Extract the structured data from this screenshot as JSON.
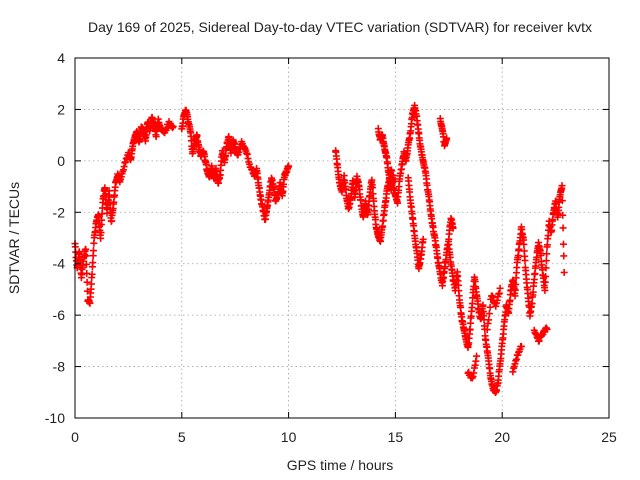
{
  "chart_data": {
    "type": "scatter",
    "title": "Day 169 of 2025, Sidereal Day-to-day VTEC variation (SDTVAR) for receiver kvtx",
    "xlabel": "GPS time / hours",
    "ylabel": "SDTVAR / TECUs",
    "xlim": [
      0,
      25
    ],
    "ylim": [
      -10,
      4
    ],
    "xticks": [
      "0",
      "5",
      "10",
      "15",
      "20",
      "25"
    ],
    "yticks": [
      "-10",
      "-8",
      "-6",
      "-4",
      "-2",
      "0",
      "2",
      "4"
    ],
    "grid": true,
    "marker": "plus",
    "color": "#ff0000",
    "series": [
      {
        "segments": [
          [
            [
              0.0,
              -3.2
            ],
            [
              0.1,
              -4.2
            ],
            [
              0.2,
              -3.5
            ],
            [
              0.3,
              -4.5
            ],
            [
              0.4,
              -3.8
            ],
            [
              0.5,
              -3.4
            ],
            [
              0.6,
              -5.4
            ],
            [
              0.7,
              -5.5
            ],
            [
              0.8,
              -4.4
            ],
            [
              0.9,
              -3.0
            ],
            [
              1.0,
              -2.4
            ],
            [
              1.1,
              -2.1
            ],
            [
              1.2,
              -3.0
            ],
            [
              1.3,
              -1.6
            ],
            [
              1.4,
              -1.0
            ],
            [
              1.5,
              -2.0
            ],
            [
              1.6,
              -1.2
            ],
            [
              1.7,
              -2.4
            ],
            [
              1.8,
              -1.7
            ],
            [
              1.9,
              -0.9
            ],
            [
              2.0,
              -0.5
            ],
            [
              2.1,
              -0.8
            ],
            [
              2.3,
              -0.2
            ],
            [
              2.5,
              0.3
            ],
            [
              2.6,
              0.0
            ],
            [
              2.7,
              0.6
            ],
            [
              2.8,
              0.9
            ],
            [
              2.9,
              1.1
            ],
            [
              3.0,
              0.7
            ],
            [
              3.1,
              1.3
            ],
            [
              3.2,
              1.2
            ],
            [
              3.3,
              0.8
            ],
            [
              3.4,
              1.5
            ],
            [
              3.5,
              1.2
            ],
            [
              3.6,
              1.7
            ],
            [
              3.7,
              1.4
            ],
            [
              3.8,
              1.0
            ],
            [
              3.9,
              1.6
            ],
            [
              4.0,
              1.3
            ],
            [
              4.2,
              1.1
            ],
            [
              4.4,
              1.5
            ],
            [
              4.6,
              1.3
            ]
          ],
          [
            [
              5.0,
              1.2
            ],
            [
              5.1,
              1.8
            ],
            [
              5.2,
              2.0
            ],
            [
              5.3,
              1.5
            ],
            [
              5.4,
              1.2
            ],
            [
              5.5,
              0.3
            ],
            [
              5.6,
              0.7
            ],
            [
              5.7,
              1.0
            ],
            [
              5.8,
              0.5
            ],
            [
              5.9,
              0.2
            ],
            [
              6.0,
              0.4
            ],
            [
              6.1,
              0.0
            ],
            [
              6.2,
              -0.4
            ],
            [
              6.3,
              -0.6
            ],
            [
              6.4,
              -0.2
            ],
            [
              6.5,
              -0.7
            ],
            [
              6.6,
              -0.3
            ],
            [
              6.7,
              -0.9
            ],
            [
              6.8,
              -0.5
            ],
            [
              6.9,
              0.4
            ],
            [
              7.0,
              -0.1
            ],
            [
              7.1,
              0.6
            ],
            [
              7.2,
              0.9
            ],
            [
              7.3,
              0.3
            ],
            [
              7.4,
              0.8
            ],
            [
              7.5,
              0.5
            ],
            [
              7.6,
              0.2
            ],
            [
              7.8,
              0.7
            ],
            [
              8.0,
              0.4
            ],
            [
              8.2,
              -0.2
            ],
            [
              8.4,
              -0.6
            ],
            [
              8.5,
              -0.3
            ],
            [
              8.6,
              -0.9
            ],
            [
              8.7,
              -1.5
            ],
            [
              8.8,
              -1.9
            ],
            [
              8.9,
              -2.3
            ],
            [
              9.0,
              -1.8
            ],
            [
              9.1,
              -1.2
            ],
            [
              9.2,
              -0.7
            ],
            [
              9.3,
              -1.0
            ],
            [
              9.4,
              -1.6
            ],
            [
              9.5,
              -1.3
            ],
            [
              9.6,
              -0.9
            ],
            [
              9.7,
              -1.4
            ],
            [
              9.8,
              -0.6
            ],
            [
              9.9,
              -0.4
            ],
            [
              10.0,
              -0.2
            ]
          ],
          [
            [
              12.2,
              0.4
            ],
            [
              12.3,
              -0.3
            ],
            [
              12.4,
              -0.9
            ],
            [
              12.5,
              -1.2
            ],
            [
              12.6,
              -0.6
            ],
            [
              12.7,
              -1.3
            ],
            [
              12.8,
              -1.9
            ],
            [
              12.9,
              -1.5
            ],
            [
              13.0,
              -0.8
            ],
            [
              13.1,
              -1.4
            ],
            [
              13.2,
              -0.6
            ],
            [
              13.3,
              -1.0
            ],
            [
              13.4,
              -1.7
            ],
            [
              13.5,
              -2.2
            ],
            [
              13.6,
              -1.6
            ],
            [
              13.7,
              -2.1
            ],
            [
              13.8,
              -1.3
            ],
            [
              13.9,
              -0.7
            ],
            [
              14.0,
              -1.8
            ],
            [
              14.1,
              -2.6
            ],
            [
              14.2,
              -2.9
            ],
            [
              14.3,
              -3.1
            ],
            [
              14.4,
              -2.5
            ],
            [
              14.5,
              -1.8
            ],
            [
              14.6,
              -1.2
            ],
            [
              14.7,
              -0.8
            ],
            [
              14.8,
              -0.3
            ],
            [
              14.9,
              -1.0
            ],
            [
              15.0,
              -1.3
            ],
            [
              15.1,
              -1.6
            ],
            [
              15.2,
              -0.7
            ],
            [
              15.3,
              -0.2
            ],
            [
              15.4,
              0.3
            ],
            [
              15.5,
              0.0
            ],
            [
              15.6,
              0.6
            ],
            [
              15.7,
              1.1
            ],
            [
              15.8,
              1.8
            ],
            [
              15.9,
              2.1
            ],
            [
              16.0,
              1.7
            ],
            [
              16.1,
              1.0
            ],
            [
              16.2,
              0.4
            ],
            [
              16.3,
              0.0
            ],
            [
              16.4,
              -0.4
            ],
            [
              16.5,
              -1.1
            ],
            [
              16.6,
              -1.6
            ],
            [
              16.7,
              -2.3
            ],
            [
              16.8,
              -2.8
            ],
            [
              16.9,
              -3.3
            ],
            [
              17.0,
              -3.9
            ],
            [
              17.1,
              -4.4
            ],
            [
              17.2,
              -4.8
            ],
            [
              17.3,
              -4.2
            ],
            [
              17.4,
              -3.6
            ],
            [
              17.5,
              -3.0
            ],
            [
              17.6,
              -2.2
            ],
            [
              17.7,
              -2.6
            ]
          ],
          [
            [
              14.2,
              1.2
            ],
            [
              14.3,
              0.8
            ],
            [
              14.4,
              1.0
            ],
            [
              14.5,
              0.4
            ],
            [
              14.6,
              0.1
            ],
            [
              14.7,
              -0.6
            ],
            [
              14.8,
              -1.1
            ],
            [
              14.9,
              -0.6
            ]
          ],
          [
            [
              15.6,
              -0.6
            ],
            [
              15.7,
              -1.5
            ],
            [
              15.8,
              -2.2
            ],
            [
              15.9,
              -2.9
            ],
            [
              16.0,
              -3.5
            ],
            [
              16.1,
              -4.2
            ],
            [
              16.2,
              -3.7
            ],
            [
              16.3,
              -3.0
            ]
          ],
          [
            [
              17.1,
              1.6
            ],
            [
              17.2,
              1.2
            ],
            [
              17.3,
              0.6
            ],
            [
              17.4,
              0.9
            ]
          ],
          [
            [
              17.5,
              -3.3
            ],
            [
              17.6,
              -4.0
            ],
            [
              17.7,
              -4.6
            ],
            [
              17.8,
              -5.0
            ],
            [
              17.9,
              -4.3
            ],
            [
              18.0,
              -5.4
            ],
            [
              18.1,
              -6.1
            ],
            [
              18.2,
              -6.5
            ],
            [
              18.3,
              -6.9
            ],
            [
              18.4,
              -7.3
            ],
            [
              18.5,
              -6.5
            ],
            [
              18.6,
              -5.5
            ],
            [
              18.7,
              -4.5
            ],
            [
              18.8,
              -5.2
            ],
            [
              18.9,
              -5.8
            ],
            [
              19.0,
              -6.2
            ],
            [
              19.1,
              -5.6
            ],
            [
              19.2,
              -6.8
            ],
            [
              19.3,
              -7.4
            ],
            [
              19.4,
              -8.0
            ],
            [
              19.5,
              -8.6
            ],
            [
              19.6,
              -8.9
            ],
            [
              19.7,
              -9.0
            ],
            [
              19.8,
              -8.6
            ],
            [
              19.9,
              -7.9
            ],
            [
              20.0,
              -7.1
            ],
            [
              20.1,
              -6.3
            ],
            [
              20.2,
              -5.6
            ],
            [
              20.3,
              -5.9
            ],
            [
              20.4,
              -5.1
            ],
            [
              20.5,
              -4.6
            ],
            [
              20.6,
              -5.2
            ],
            [
              20.7,
              -4.0
            ],
            [
              20.8,
              -3.3
            ],
            [
              20.9,
              -2.6
            ],
            [
              21.0,
              -3.1
            ],
            [
              21.1,
              -4.3
            ],
            [
              21.2,
              -5.2
            ],
            [
              21.3,
              -6.0
            ],
            [
              21.4,
              -5.5
            ],
            [
              21.5,
              -4.6
            ],
            [
              21.6,
              -3.8
            ],
            [
              21.7,
              -3.2
            ],
            [
              21.8,
              -3.6
            ],
            [
              21.9,
              -4.4
            ],
            [
              22.0,
              -5.0
            ],
            [
              22.1,
              -3.4
            ],
            [
              22.2,
              -2.4
            ],
            [
              22.3,
              -2.8
            ],
            [
              22.4,
              -2.0
            ],
            [
              22.5,
              -1.6
            ],
            [
              22.6,
              -2.2
            ],
            [
              22.7,
              -1.4
            ],
            [
              22.8,
              -1.0
            ],
            [
              22.9,
              -4.3
            ]
          ],
          [
            [
              18.4,
              -8.2
            ],
            [
              18.6,
              -8.5
            ],
            [
              18.8,
              -7.6
            ]
          ],
          [
            [
              19.3,
              -6.6
            ],
            [
              19.5,
              -5.2
            ],
            [
              19.7,
              -5.6
            ],
            [
              19.9,
              -5.0
            ]
          ],
          [
            [
              20.5,
              -8.2
            ],
            [
              20.7,
              -7.6
            ],
            [
              20.9,
              -7.2
            ]
          ],
          [
            [
              21.5,
              -6.6
            ],
            [
              21.7,
              -7.0
            ],
            [
              21.9,
              -6.7
            ],
            [
              22.1,
              -6.5
            ]
          ]
        ]
      }
    ]
  }
}
